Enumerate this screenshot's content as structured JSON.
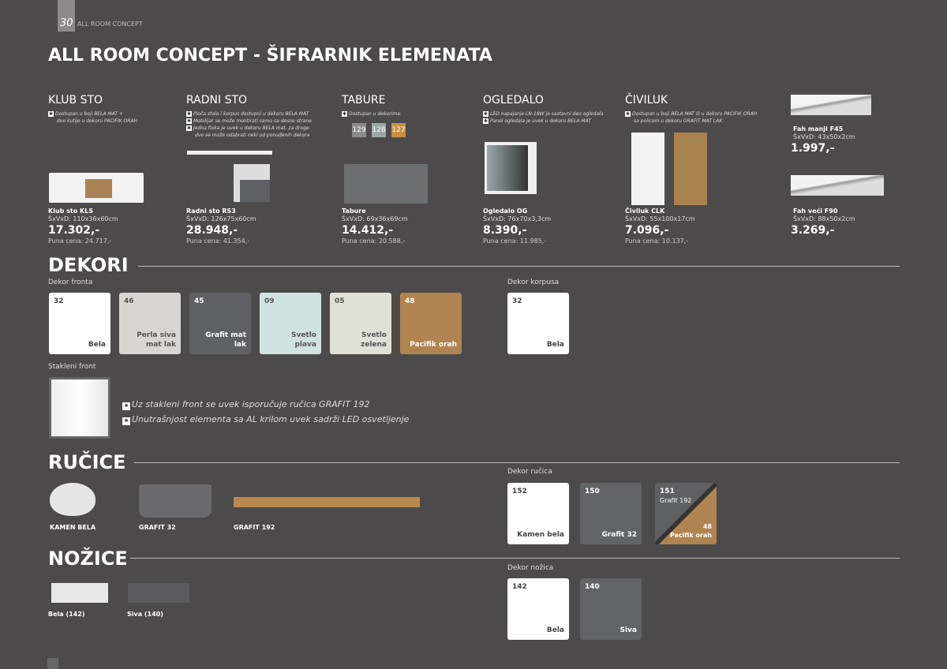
{
  "header": {
    "page_number": "30",
    "brand": "ALL ROOM CONCEPT",
    "title": "ALL ROOM CONCEPT - ŠIFRARNIK ELEMENATA"
  },
  "products": [
    {
      "heading": "KLUB STO",
      "notes": [
        "Dostupan u boji BELA MAT +",
        "dve kutije u dekoru PACIFIK ORAH"
      ],
      "name": "Klub sto KLS",
      "dims": "ŠxVxD: 110x36x60cm",
      "price": "17.302,-",
      "full": "Puna cena: 24.717,-"
    },
    {
      "heading": "RADNI STO",
      "notes": [
        "Ploča stola i korpus dostupni u dekoru BELA MAT",
        "Mobilijar se može montirati samo sa desne strane",
        "Jedna fioka je uvek u dekoru BELA mat, za druge",
        "dve se može odabrati neki od ponuđenih dekora"
      ],
      "name": "Radni sto RS3",
      "dims": "ŠxVxD: 126x75x60cm",
      "price": "28.948,-",
      "full": "Puna cena: 41.354,-"
    },
    {
      "heading": "TABURE",
      "notes": [
        "Dostupan u dekorima:"
      ],
      "chips": [
        {
          "code": "129",
          "color": "#8a8a8a"
        },
        {
          "code": "128",
          "color": "#9aa9a6"
        },
        {
          "code": "127",
          "color": "#c98f45"
        }
      ],
      "name": "Tabure",
      "dims": "ŠxVxD: 69x36x69cm",
      "price": "14.412,-",
      "full": "Puna cena: 20.588,-"
    },
    {
      "heading": "OGLEDALO",
      "notes": [
        "LED napajanje LN-18W je sastavni deo ogledala",
        "Panel ogledala je uvek u dekoru BELA MAT"
      ],
      "name": "Ogledalo OG",
      "dims": "ŠxVxD: 76x70x3,3cm",
      "price": "8.390,-",
      "full": "Puna cena: 11.985,-"
    },
    {
      "heading": "ČIVILUK",
      "notes": [
        "Dostupan u boji BELA MAT ili u dekoru PACIFIK ORAH",
        "sa policom u dekoru GRAFIT MAT LAK"
      ],
      "name": "Čiviluk CLK",
      "dims": "ŠxVxD: 55x100x17cm",
      "price": "7.096,-",
      "full": "Puna cena: 10.137,-"
    }
  ],
  "shelves": [
    {
      "name": "Fah manji F45",
      "dims": "ŠxVxD: 43x50x2cm",
      "price": "1.997,-"
    },
    {
      "name": "Fah veći F90",
      "dims": "ŠxVxD: 88x50x2cm",
      "price": "3.269,-"
    }
  ],
  "dekori": {
    "title": "DEKORI",
    "front_label": "Dekor fronta",
    "front": [
      {
        "code": "32",
        "name": "Bela",
        "color": "#ffffff",
        "text": "#444"
      },
      {
        "code": "46",
        "name": "Perla siva mat lak",
        "color": "#d8d6d2",
        "text": "#555"
      },
      {
        "code": "45",
        "name": "Grafit mat lak",
        "color": "#5f6063",
        "text": "#fff"
      },
      {
        "code": "09",
        "name": "Svetlo plava",
        "color": "#cfe4e0",
        "text": "#555"
      },
      {
        "code": "05",
        "name": "Svetlo zelena",
        "color": "#dfe0d6",
        "text": "#555"
      },
      {
        "code": "48",
        "name": "Pacifik orah",
        "color": "#b08450",
        "text": "#fff"
      }
    ],
    "korpus_label": "Dekor korpusa",
    "korpus": [
      {
        "code": "32",
        "name": "Bela",
        "color": "#ffffff",
        "text": "#444"
      }
    ],
    "glass_label": "Stakleni front",
    "glass_notes": [
      "Uz stakleni front se uvek isporučuje ručica GRAFIT 192",
      "Unutrašnjost elementa sa AL krilom uvek sadrži LED osvetljenje"
    ]
  },
  "rucice": {
    "title": "RUČICE",
    "items": [
      "KAMEN BELA",
      "GRAFIT 32",
      "GRAFIT 192"
    ],
    "label": "Dekor ručica",
    "swatches": [
      {
        "code": "152",
        "name": "Kamen bela",
        "color": "#ffffff",
        "text": "#444"
      },
      {
        "code": "150",
        "name": "Grafit 32",
        "color": "#626366",
        "text": "#fff"
      }
    ],
    "split": {
      "code1": "151",
      "name1": "Grafit 192",
      "code2": "48",
      "name2": "Pacifik orah"
    }
  },
  "nozice": {
    "title": "NOŽICE",
    "items": [
      "Bela (142)",
      "Siva (140)"
    ],
    "label": "Dekor nožica",
    "swatches": [
      {
        "code": "142",
        "name": "Bela",
        "color": "#ffffff",
        "text": "#444"
      },
      {
        "code": "140",
        "name": "Siva",
        "color": "#626366",
        "text": "#fff"
      }
    ]
  }
}
